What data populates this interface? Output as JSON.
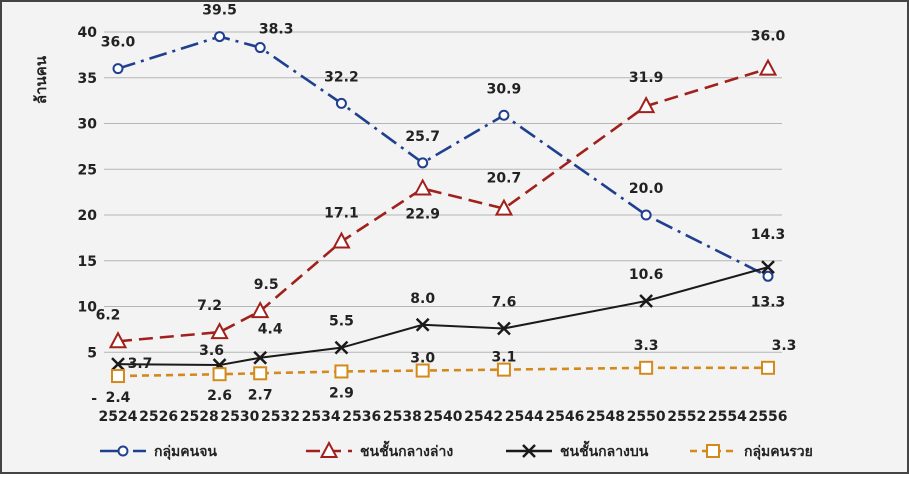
{
  "chart_data": {
    "type": "line",
    "ylabel": "ล้านคน",
    "ylim": [
      0,
      40
    ],
    "y_ticks": [
      "-",
      "5",
      "10",
      "15",
      "20",
      "25",
      "30",
      "35",
      "40"
    ],
    "x_ticks": [
      "2524",
      "2526",
      "2528",
      "2530",
      "2532",
      "2534",
      "2536",
      "2538",
      "2540",
      "2542",
      "2544",
      "2546",
      "2548",
      "2550",
      "2552",
      "2554",
      "2556"
    ],
    "grid": true,
    "legend_position": "bottom",
    "series": [
      {
        "name": "กลุ่มคนจน",
        "color": "#1f3f8f",
        "marker": "circle",
        "dash": "dashdot",
        "x": [
          2524,
          2529,
          2531,
          2535,
          2539,
          2543,
          2550,
          2556
        ],
        "values": [
          36.0,
          39.5,
          38.3,
          32.2,
          25.7,
          30.9,
          20.0,
          13.3
        ],
        "labels": [
          "36.0",
          "39.5",
          "38.3",
          "32.2",
          "25.7",
          "30.9",
          "20.0",
          "13.3"
        ]
      },
      {
        "name": "ชนชั้นกลางล่าง",
        "color": "#a0201c",
        "marker": "triangle",
        "dash": "dash",
        "x": [
          2524,
          2529,
          2531,
          2535,
          2539,
          2543,
          2550,
          2556
        ],
        "values": [
          6.2,
          7.2,
          9.5,
          17.1,
          22.9,
          20.7,
          31.9,
          36.0
        ],
        "labels": [
          "6.2",
          "7.2",
          "9.5",
          "17.1",
          "22.9",
          "20.7",
          "31.9",
          "36.0"
        ]
      },
      {
        "name": "ชนชั้นกลางบน",
        "color": "#1a1a1a",
        "marker": "x",
        "dash": "solid",
        "x": [
          2524,
          2529,
          2531,
          2535,
          2539,
          2543,
          2550,
          2556
        ],
        "values": [
          3.7,
          3.6,
          4.4,
          5.5,
          8.0,
          7.6,
          10.6,
          14.3
        ],
        "labels": [
          "3.7",
          "3.6",
          "4.4",
          "5.5",
          "8.0",
          "7.6",
          "10.6",
          "14.3"
        ]
      },
      {
        "name": "กลุ่มคนรวย",
        "color": "#d48a1a",
        "marker": "square",
        "dash": "shortdash",
        "x": [
          2524,
          2529,
          2531,
          2535,
          2539,
          2543,
          2550,
          2556
        ],
        "values": [
          2.4,
          2.6,
          2.7,
          2.9,
          3.0,
          3.1,
          3.3,
          3.3
        ],
        "labels": [
          "2.4",
          "2.6",
          "2.7",
          "2.9",
          "3.0",
          "3.1",
          "3.3",
          "3.3"
        ]
      }
    ]
  }
}
